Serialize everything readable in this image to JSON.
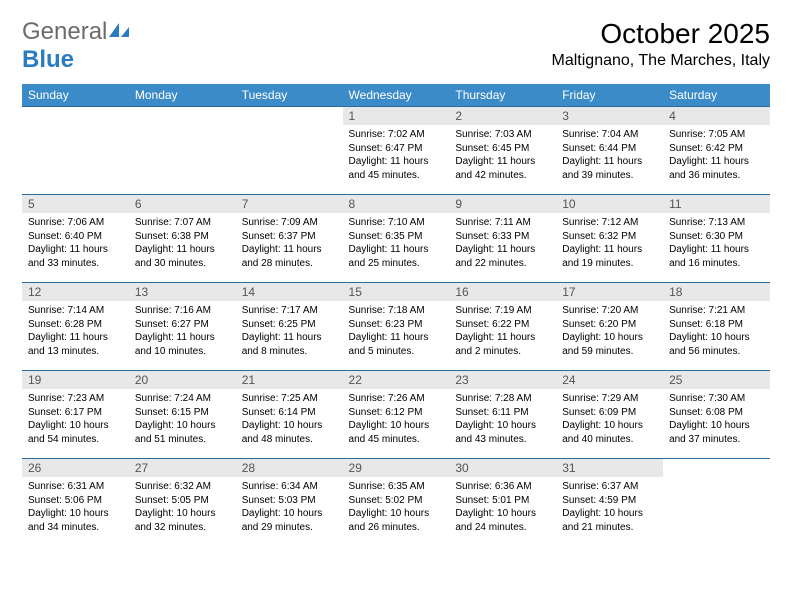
{
  "brand": {
    "word1": "General",
    "word2": "Blue"
  },
  "header": {
    "month_title": "October 2025",
    "location": "Maltignano, The Marches, Italy"
  },
  "colors": {
    "header_bg": "#3b8bc9",
    "header_text": "#ffffff",
    "daynum_bg": "#e8e8e8",
    "daynum_text": "#555555",
    "border": "#2b6aa0",
    "logo_blue": "#2b7bbf",
    "logo_gray": "#6b6b6b"
  },
  "weekdays": [
    "Sunday",
    "Monday",
    "Tuesday",
    "Wednesday",
    "Thursday",
    "Friday",
    "Saturday"
  ],
  "weeks": [
    [
      null,
      null,
      null,
      {
        "n": "1",
        "sunrise": "7:02 AM",
        "sunset": "6:47 PM",
        "daylight": "11 hours and 45 minutes."
      },
      {
        "n": "2",
        "sunrise": "7:03 AM",
        "sunset": "6:45 PM",
        "daylight": "11 hours and 42 minutes."
      },
      {
        "n": "3",
        "sunrise": "7:04 AM",
        "sunset": "6:44 PM",
        "daylight": "11 hours and 39 minutes."
      },
      {
        "n": "4",
        "sunrise": "7:05 AM",
        "sunset": "6:42 PM",
        "daylight": "11 hours and 36 minutes."
      }
    ],
    [
      {
        "n": "5",
        "sunrise": "7:06 AM",
        "sunset": "6:40 PM",
        "daylight": "11 hours and 33 minutes."
      },
      {
        "n": "6",
        "sunrise": "7:07 AM",
        "sunset": "6:38 PM",
        "daylight": "11 hours and 30 minutes."
      },
      {
        "n": "7",
        "sunrise": "7:09 AM",
        "sunset": "6:37 PM",
        "daylight": "11 hours and 28 minutes."
      },
      {
        "n": "8",
        "sunrise": "7:10 AM",
        "sunset": "6:35 PM",
        "daylight": "11 hours and 25 minutes."
      },
      {
        "n": "9",
        "sunrise": "7:11 AM",
        "sunset": "6:33 PM",
        "daylight": "11 hours and 22 minutes."
      },
      {
        "n": "10",
        "sunrise": "7:12 AM",
        "sunset": "6:32 PM",
        "daylight": "11 hours and 19 minutes."
      },
      {
        "n": "11",
        "sunrise": "7:13 AM",
        "sunset": "6:30 PM",
        "daylight": "11 hours and 16 minutes."
      }
    ],
    [
      {
        "n": "12",
        "sunrise": "7:14 AM",
        "sunset": "6:28 PM",
        "daylight": "11 hours and 13 minutes."
      },
      {
        "n": "13",
        "sunrise": "7:16 AM",
        "sunset": "6:27 PM",
        "daylight": "11 hours and 10 minutes."
      },
      {
        "n": "14",
        "sunrise": "7:17 AM",
        "sunset": "6:25 PM",
        "daylight": "11 hours and 8 minutes."
      },
      {
        "n": "15",
        "sunrise": "7:18 AM",
        "sunset": "6:23 PM",
        "daylight": "11 hours and 5 minutes."
      },
      {
        "n": "16",
        "sunrise": "7:19 AM",
        "sunset": "6:22 PM",
        "daylight": "11 hours and 2 minutes."
      },
      {
        "n": "17",
        "sunrise": "7:20 AM",
        "sunset": "6:20 PM",
        "daylight": "10 hours and 59 minutes."
      },
      {
        "n": "18",
        "sunrise": "7:21 AM",
        "sunset": "6:18 PM",
        "daylight": "10 hours and 56 minutes."
      }
    ],
    [
      {
        "n": "19",
        "sunrise": "7:23 AM",
        "sunset": "6:17 PM",
        "daylight": "10 hours and 54 minutes."
      },
      {
        "n": "20",
        "sunrise": "7:24 AM",
        "sunset": "6:15 PM",
        "daylight": "10 hours and 51 minutes."
      },
      {
        "n": "21",
        "sunrise": "7:25 AM",
        "sunset": "6:14 PM",
        "daylight": "10 hours and 48 minutes."
      },
      {
        "n": "22",
        "sunrise": "7:26 AM",
        "sunset": "6:12 PM",
        "daylight": "10 hours and 45 minutes."
      },
      {
        "n": "23",
        "sunrise": "7:28 AM",
        "sunset": "6:11 PM",
        "daylight": "10 hours and 43 minutes."
      },
      {
        "n": "24",
        "sunrise": "7:29 AM",
        "sunset": "6:09 PM",
        "daylight": "10 hours and 40 minutes."
      },
      {
        "n": "25",
        "sunrise": "7:30 AM",
        "sunset": "6:08 PM",
        "daylight": "10 hours and 37 minutes."
      }
    ],
    [
      {
        "n": "26",
        "sunrise": "6:31 AM",
        "sunset": "5:06 PM",
        "daylight": "10 hours and 34 minutes."
      },
      {
        "n": "27",
        "sunrise": "6:32 AM",
        "sunset": "5:05 PM",
        "daylight": "10 hours and 32 minutes."
      },
      {
        "n": "28",
        "sunrise": "6:34 AM",
        "sunset": "5:03 PM",
        "daylight": "10 hours and 29 minutes."
      },
      {
        "n": "29",
        "sunrise": "6:35 AM",
        "sunset": "5:02 PM",
        "daylight": "10 hours and 26 minutes."
      },
      {
        "n": "30",
        "sunrise": "6:36 AM",
        "sunset": "5:01 PM",
        "daylight": "10 hours and 24 minutes."
      },
      {
        "n": "31",
        "sunrise": "6:37 AM",
        "sunset": "4:59 PM",
        "daylight": "10 hours and 21 minutes."
      },
      null
    ]
  ],
  "labels": {
    "sunrise": "Sunrise:",
    "sunset": "Sunset:",
    "daylight": "Daylight:"
  }
}
